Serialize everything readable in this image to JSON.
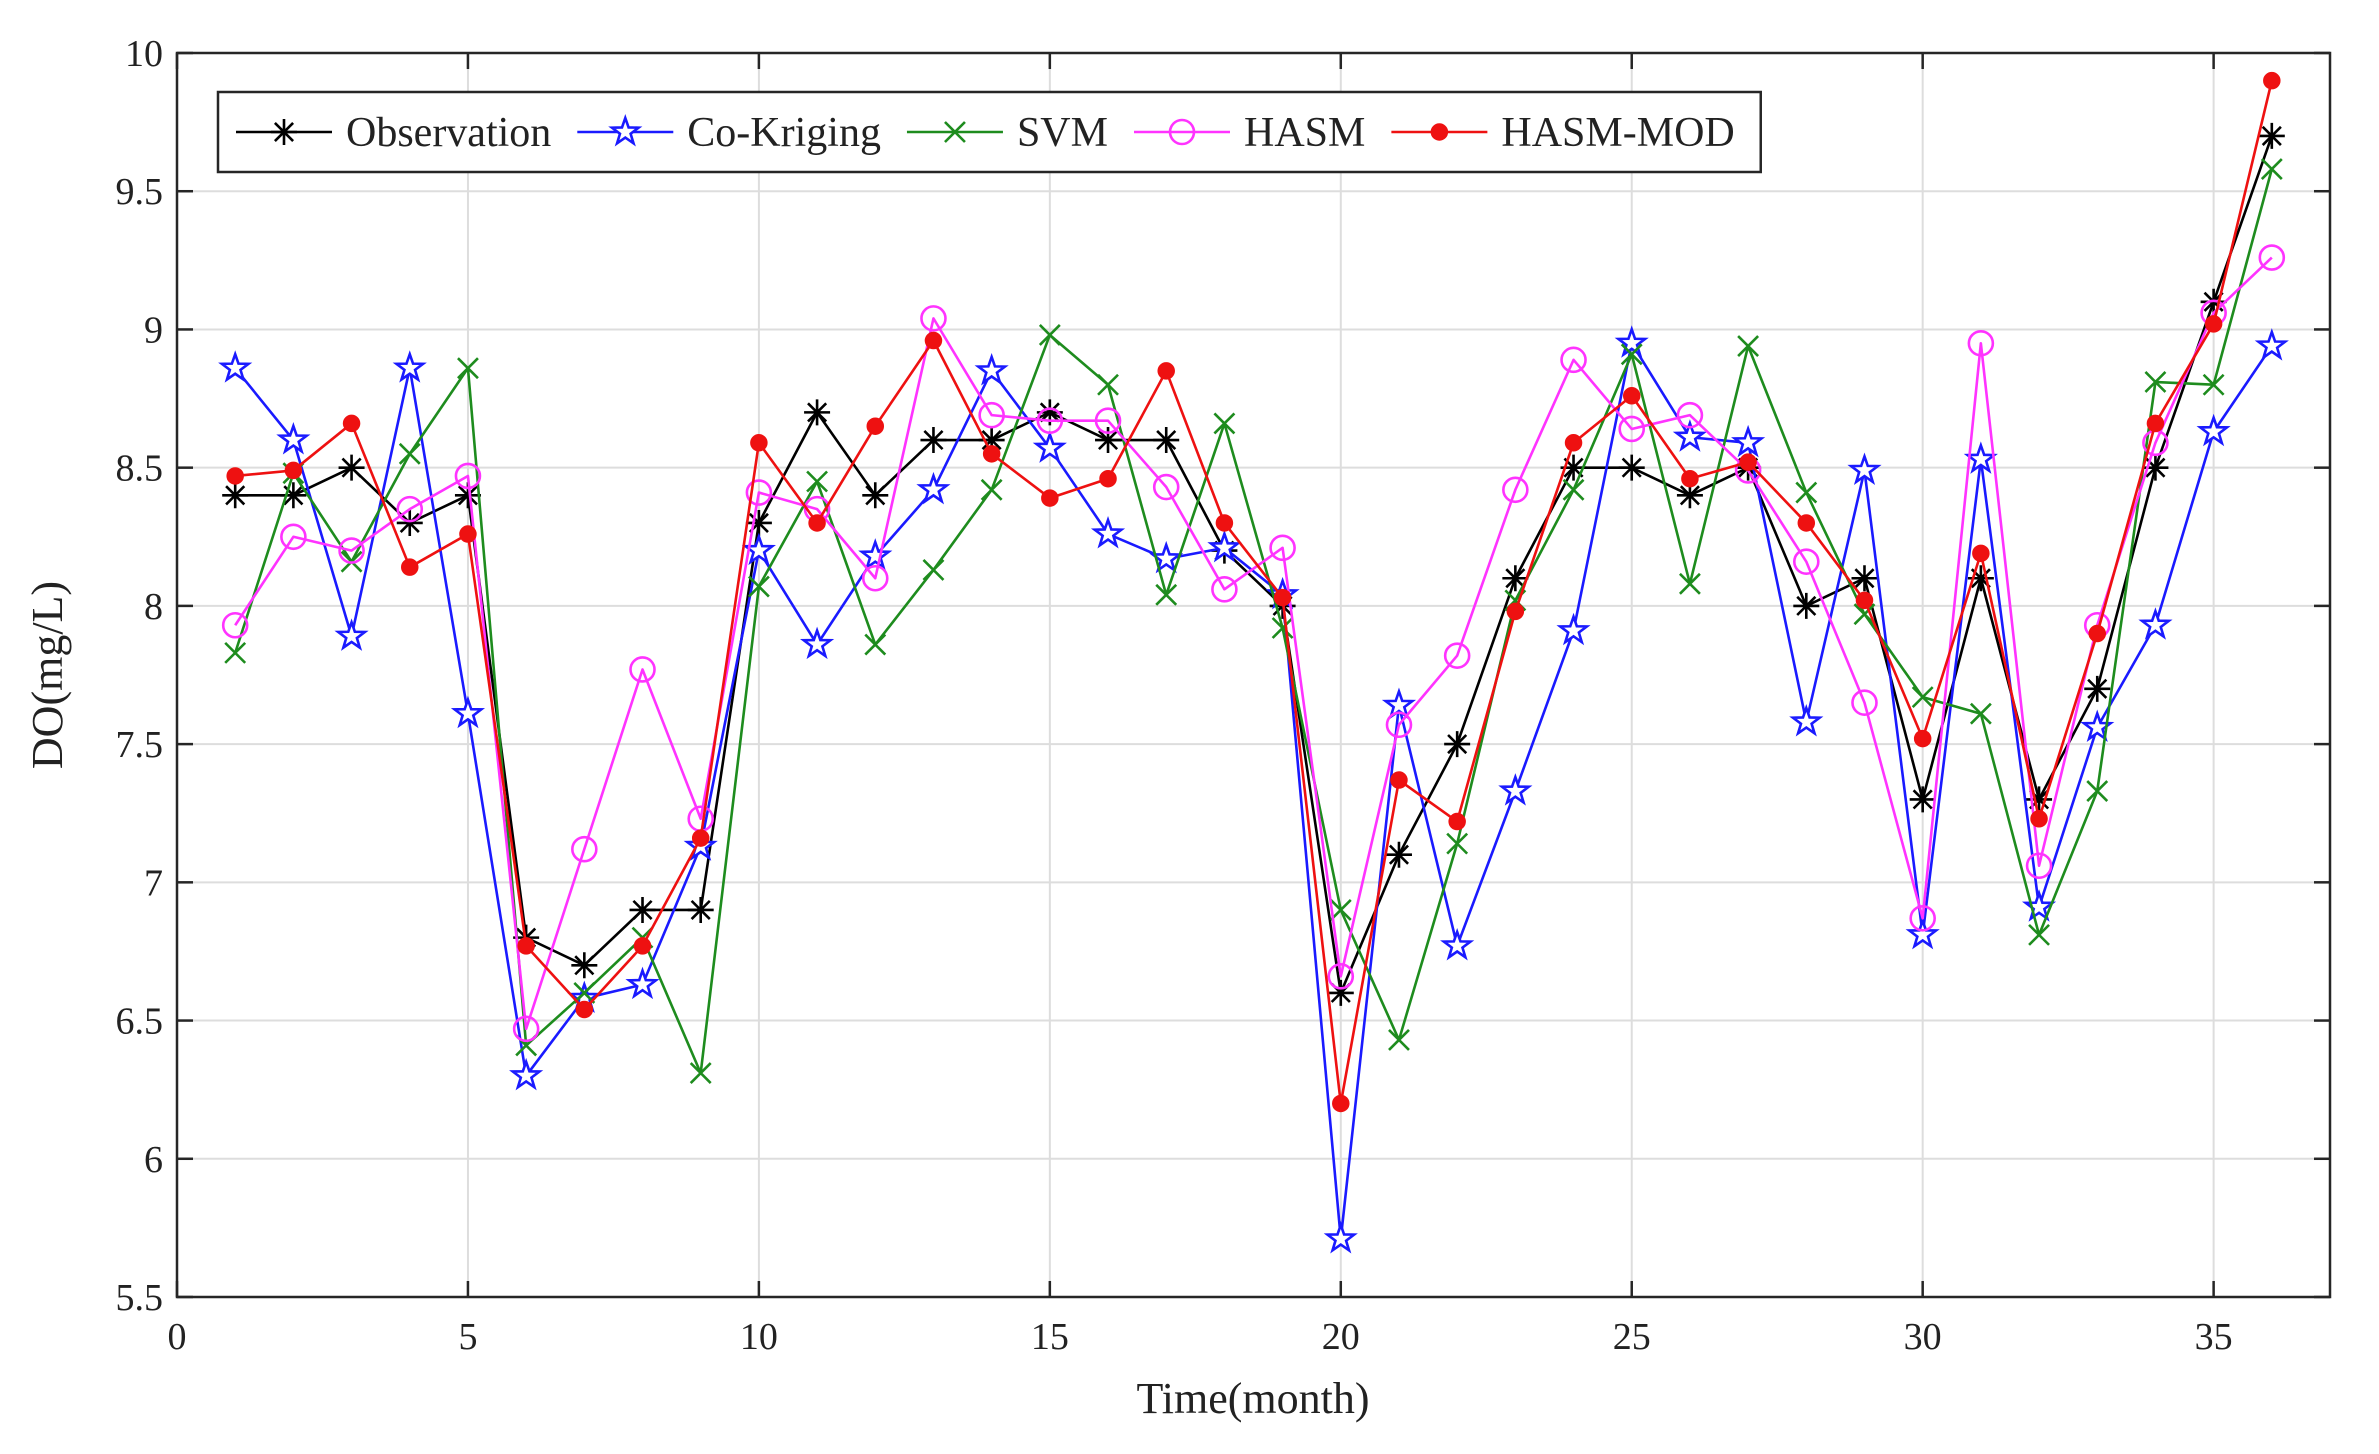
{
  "chart_data": {
    "type": "line",
    "title": "",
    "xlabel": "Time(month)",
    "ylabel": "DO(mg/L)",
    "xlim": [
      0,
      37
    ],
    "ylim": [
      5.5,
      10
    ],
    "grid": true,
    "legend_position": "top-left",
    "xticks": [
      0,
      5,
      10,
      15,
      20,
      25,
      30,
      35
    ],
    "xtick_labels": [
      "0",
      "5",
      "10",
      "15",
      "20",
      "25",
      "30",
      "35"
    ],
    "yticks": [
      5.5,
      6,
      6.5,
      7,
      7.5,
      8,
      8.5,
      9,
      9.5,
      10
    ],
    "ytick_labels": [
      "5.5",
      "6",
      "6.5",
      "7",
      "7.5",
      "8",
      "8.5",
      "9",
      "9.5",
      "10"
    ],
    "x": [
      1,
      2,
      3,
      4,
      5,
      6,
      7,
      8,
      9,
      10,
      11,
      12,
      13,
      14,
      15,
      16,
      17,
      18,
      19,
      20,
      21,
      22,
      23,
      24,
      25,
      26,
      27,
      28,
      29,
      30,
      31,
      32,
      33,
      34,
      35,
      36
    ],
    "series": [
      {
        "name": "Observation",
        "color": "#000000",
        "marker": "asterisk",
        "values": [
          8.4,
          8.4,
          8.5,
          8.3,
          8.4,
          6.8,
          6.7,
          6.9,
          6.9,
          8.3,
          8.7,
          8.4,
          8.6,
          8.6,
          8.7,
          8.6,
          8.6,
          8.2,
          8.0,
          6.6,
          7.1,
          7.5,
          8.1,
          8.5,
          8.5,
          8.4,
          8.5,
          8.0,
          8.1,
          7.3,
          8.1,
          7.3,
          7.7,
          8.5,
          9.1,
          9.7
        ]
      },
      {
        "name": "Co-Kriging",
        "color": "#1a1aff",
        "marker": "pentagram",
        "values": [
          8.86,
          8.6,
          7.89,
          8.86,
          7.61,
          6.3,
          6.58,
          6.63,
          7.13,
          8.2,
          7.86,
          8.18,
          8.42,
          8.85,
          8.57,
          8.26,
          8.17,
          8.21,
          8.04,
          5.71,
          7.64,
          6.77,
          7.33,
          7.91,
          8.95,
          8.61,
          8.59,
          7.58,
          8.49,
          6.81,
          8.53,
          6.91,
          7.56,
          7.93,
          8.63,
          8.94
        ]
      },
      {
        "name": "SVM",
        "color": "#1e8c1e",
        "marker": "x",
        "values": [
          7.83,
          8.48,
          8.16,
          8.55,
          8.86,
          6.41,
          6.6,
          6.8,
          6.31,
          8.07,
          8.45,
          7.86,
          8.13,
          8.42,
          8.98,
          8.8,
          8.04,
          8.66,
          7.92,
          6.9,
          6.43,
          7.14,
          8.02,
          8.42,
          8.91,
          8.08,
          8.94,
          8.41,
          7.97,
          7.67,
          7.61,
          6.81,
          7.33,
          8.81,
          8.8,
          9.58
        ]
      },
      {
        "name": "HASM",
        "color": "#ff33ff",
        "marker": "circle",
        "values": [
          7.93,
          8.25,
          8.2,
          8.35,
          8.47,
          6.47,
          7.12,
          7.77,
          7.23,
          8.41,
          8.35,
          8.1,
          9.04,
          8.69,
          8.67,
          8.67,
          8.43,
          8.06,
          8.21,
          6.66,
          7.57,
          7.82,
          8.42,
          8.89,
          8.64,
          8.69,
          8.49,
          8.16,
          7.65,
          6.87,
          8.95,
          7.06,
          7.93,
          8.59,
          9.06,
          9.26
        ]
      },
      {
        "name": "HASM-MOD",
        "color": "#ee1111",
        "marker": "filled-circle",
        "values": [
          8.47,
          8.49,
          8.66,
          8.14,
          8.26,
          6.77,
          6.54,
          6.77,
          7.16,
          8.59,
          8.3,
          8.65,
          8.96,
          8.55,
          8.39,
          8.46,
          8.85,
          8.3,
          8.03,
          6.2,
          7.37,
          7.22,
          7.98,
          8.59,
          8.76,
          8.46,
          8.52,
          8.3,
          8.02,
          7.52,
          8.19,
          7.23,
          7.9,
          8.66,
          9.02,
          9.9
        ]
      }
    ]
  }
}
